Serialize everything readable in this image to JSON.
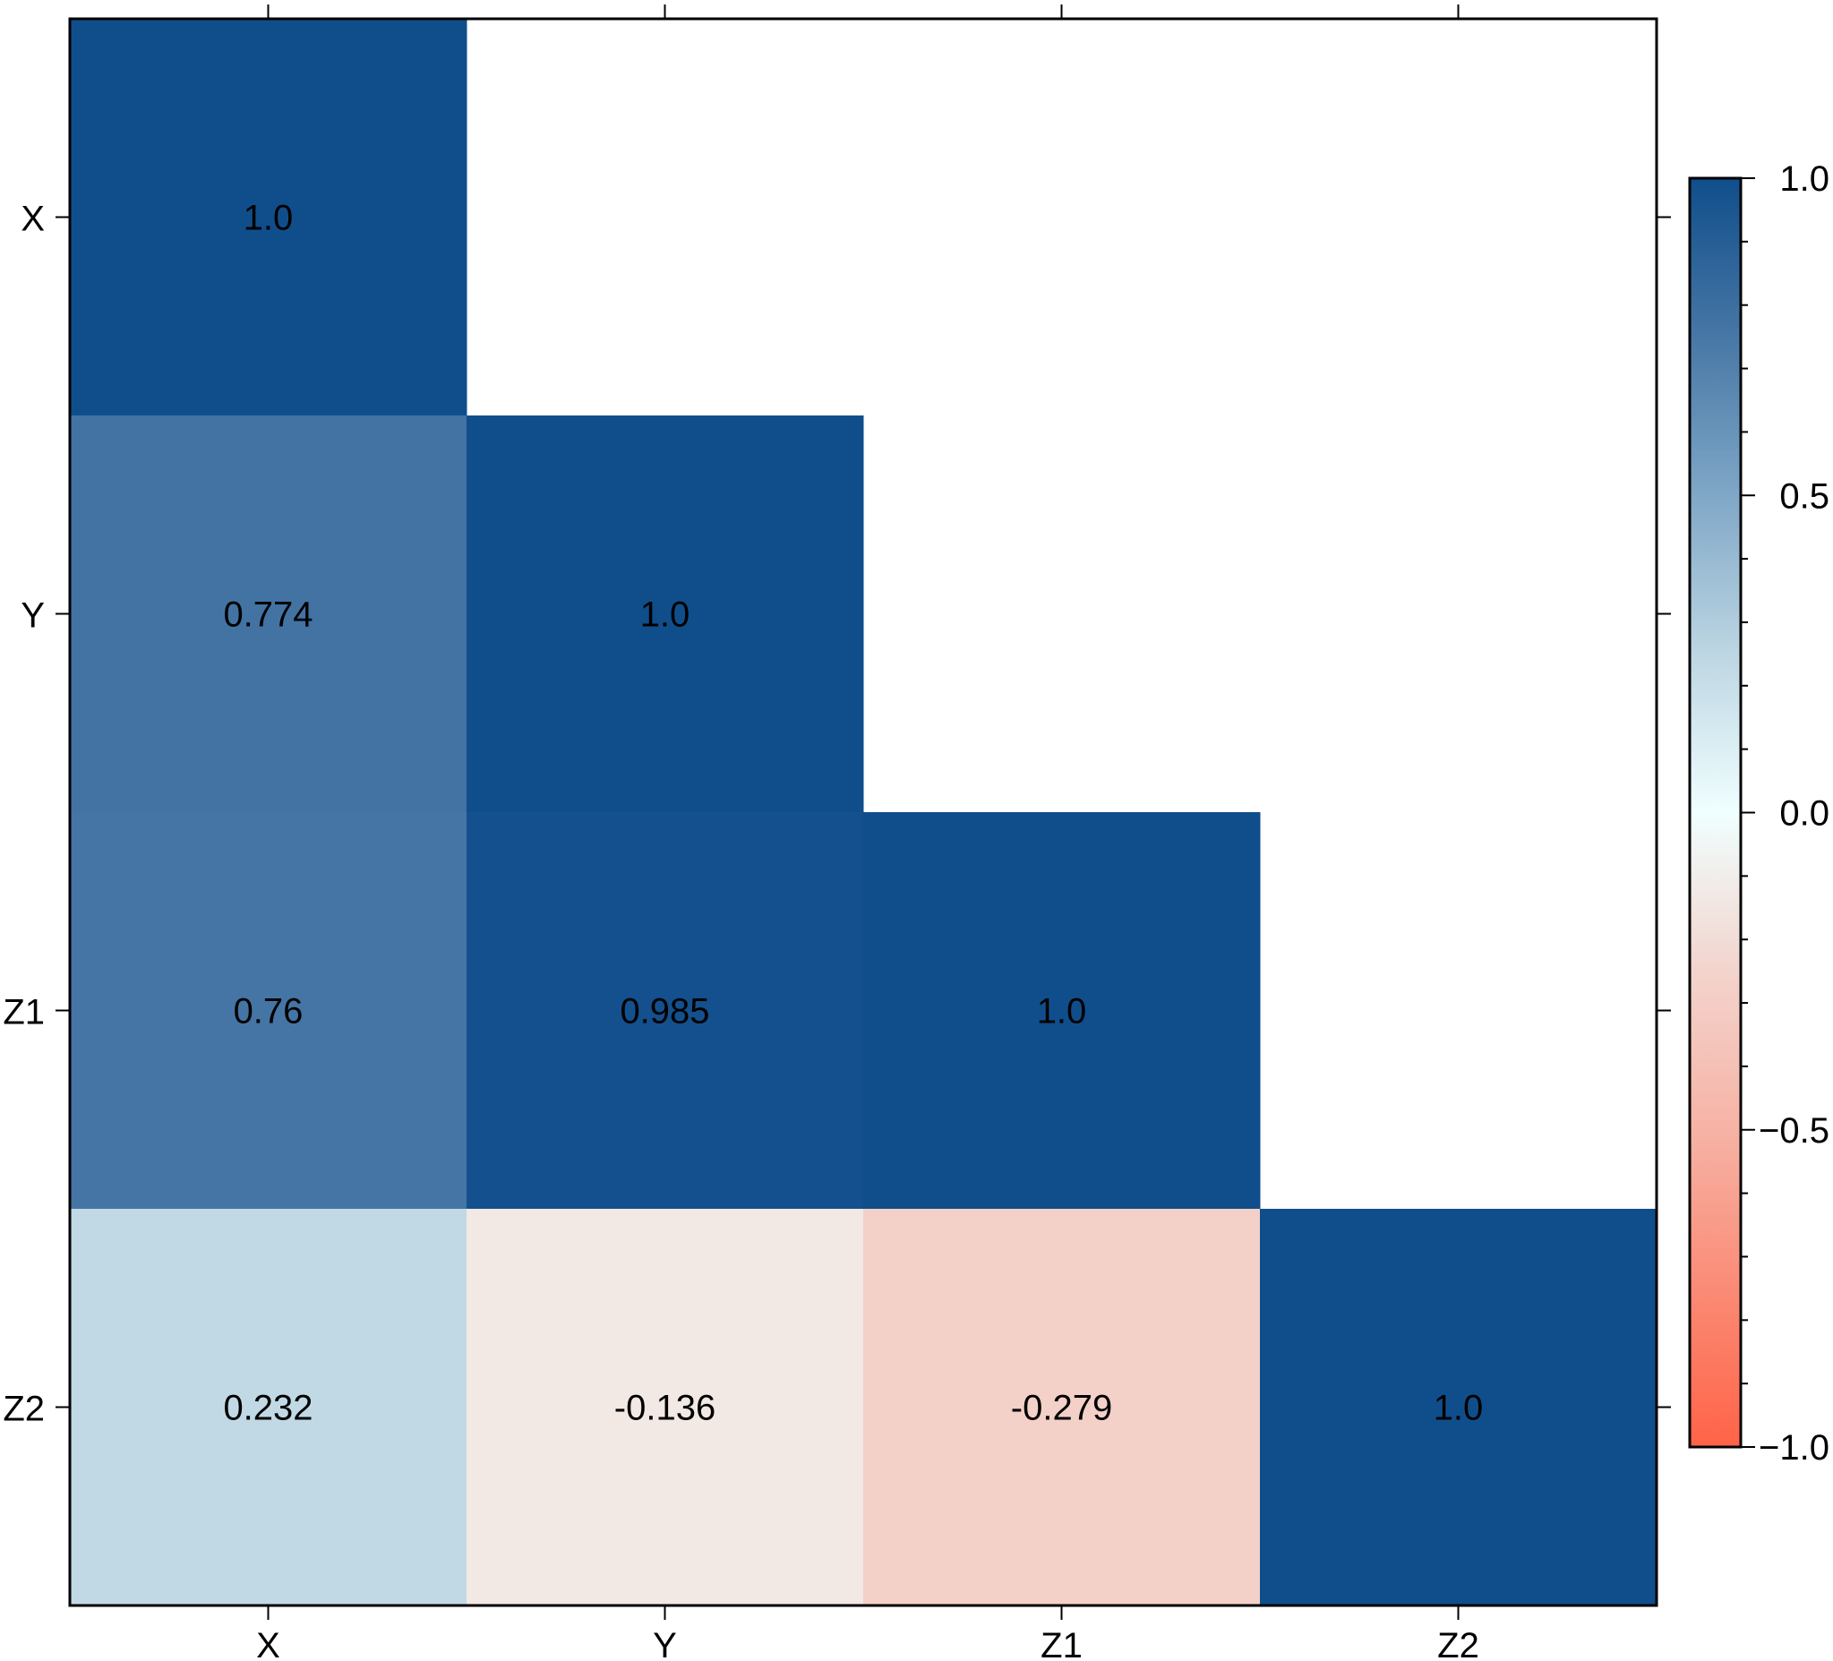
{
  "chart_data": {
    "type": "heatmap",
    "title": "",
    "xlabel": "",
    "ylabel": "",
    "x_categories": [
      "X",
      "Y",
      "Z1",
      "Z2"
    ],
    "y_categories": [
      "X",
      "Y",
      "Z1",
      "Z2"
    ],
    "cells": [
      {
        "row": "X",
        "col": "X",
        "value": 1.0,
        "label": "1.0"
      },
      {
        "row": "Y",
        "col": "X",
        "value": 0.774,
        "label": "0.774"
      },
      {
        "row": "Y",
        "col": "Y",
        "value": 1.0,
        "label": "1.0"
      },
      {
        "row": "Z1",
        "col": "X",
        "value": 0.76,
        "label": "0.76"
      },
      {
        "row": "Z1",
        "col": "Y",
        "value": 0.985,
        "label": "0.985"
      },
      {
        "row": "Z1",
        "col": "Z1",
        "value": 1.0,
        "label": "1.0"
      },
      {
        "row": "Z2",
        "col": "X",
        "value": 0.232,
        "label": "0.232"
      },
      {
        "row": "Z2",
        "col": "Y",
        "value": -0.136,
        "label": "-0.136"
      },
      {
        "row": "Z2",
        "col": "Z1",
        "value": -0.279,
        "label": "-0.279"
      },
      {
        "row": "Z2",
        "col": "Z2",
        "value": 1.0,
        "label": "1.0"
      }
    ],
    "mask": "upper-triangle",
    "colorbar": {
      "range": [
        -1.0,
        1.0
      ],
      "major_ticks": [
        1.0,
        0.5,
        0.0,
        -0.5,
        -1.0
      ],
      "major_tick_labels": [
        "1.0",
        "0.5",
        "0.0",
        "−0.5",
        "−1.0"
      ],
      "minor_step": 0.1,
      "placement": "right",
      "colormap": [
        {
          "value": -1.0,
          "color": "#ff6347"
        },
        {
          "value": -0.5,
          "color": "#f6b3a5"
        },
        {
          "value": -0.25,
          "color": "#f3d4cd"
        },
        {
          "value": 0.0,
          "color": "#f0ffff"
        },
        {
          "value": 0.25,
          "color": "#bdd6e3"
        },
        {
          "value": 0.5,
          "color": "#7fa7c7"
        },
        {
          "value": 0.75,
          "color": "#4777a5"
        },
        {
          "value": 1.0,
          "color": "#104e8b"
        }
      ]
    },
    "grid": false
  }
}
